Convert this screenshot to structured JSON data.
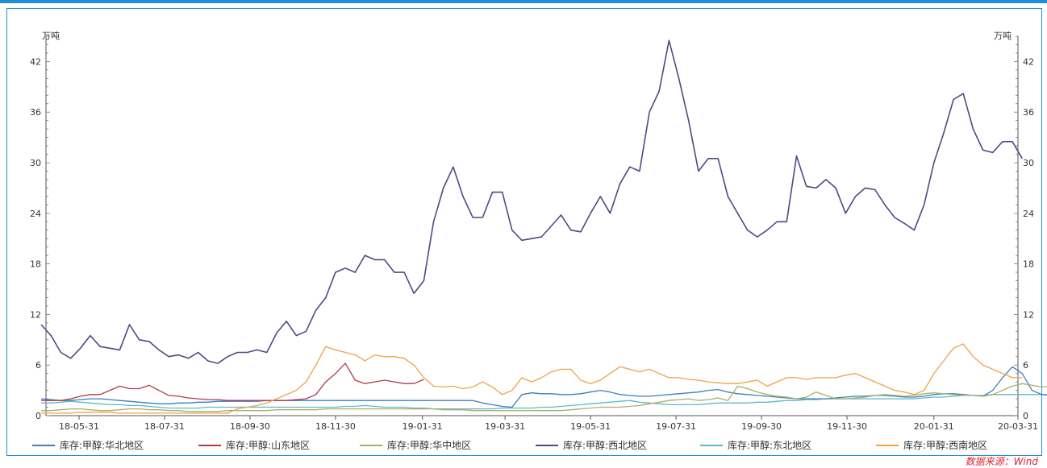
{
  "chart_data": {
    "type": "line",
    "unit_left": "万吨",
    "unit_right": "万吨",
    "ylim": [
      0,
      45
    ],
    "yticks": [
      0,
      6,
      12,
      18,
      24,
      30,
      36,
      42
    ],
    "xticks": [
      "18-05-31",
      "18-07-31",
      "18-09-30",
      "18-11-30",
      "19-01-31",
      "19-03-31",
      "19-05-31",
      "19-07-31",
      "19-09-30",
      "19-11-30",
      "20-01-31",
      "20-03-31"
    ],
    "grid": false,
    "legend_position": "bottom",
    "source": "数据来源：Wind",
    "x_start": "2018-05-04",
    "x_step_days": 7,
    "series": [
      {
        "name": "库存:甲醇:华北地区",
        "color": "#3c7fc0",
        "values": [
          2.0,
          1.9,
          1.8,
          1.8,
          1.9,
          2.0,
          2.0,
          1.9,
          1.8,
          1.7,
          1.6,
          1.5,
          1.4,
          1.4,
          1.5,
          1.5,
          1.6,
          1.6,
          1.7,
          1.7,
          1.7,
          1.7,
          1.7,
          1.8,
          1.8,
          1.8,
          1.8,
          1.8,
          1.8,
          1.8,
          1.8,
          1.8,
          1.8,
          1.8,
          1.8,
          1.8,
          1.8,
          1.8,
          1.8,
          1.8,
          1.8,
          1.8,
          1.8,
          1.8,
          1.8,
          1.5,
          1.3,
          1.1,
          1.0,
          2.5,
          2.7,
          2.6,
          2.6,
          2.5,
          2.5,
          2.6,
          2.8,
          3.0,
          2.8,
          2.5,
          2.4,
          2.3,
          2.3,
          2.4,
          2.5,
          2.6,
          2.7,
          2.8,
          3.0,
          3.1,
          2.8,
          2.6,
          2.5,
          2.4,
          2.3,
          2.2,
          2.1,
          2.0,
          2.0,
          2.0,
          2.0,
          2.1,
          2.2,
          2.3,
          2.3,
          2.4,
          2.4,
          2.3,
          2.2,
          2.2,
          2.3,
          2.5,
          2.6,
          2.6,
          2.5,
          2.4,
          2.3,
          3.0,
          4.5,
          5.8,
          5.0,
          3.0,
          2.5,
          2.4,
          2.3,
          2.2,
          2.3
        ]
      },
      {
        "name": "库存:甲醇:山东地区",
        "color": "#b23a4a",
        "values": [
          1.8,
          1.8,
          1.8,
          2.0,
          2.3,
          2.5,
          2.5,
          3.0,
          3.5,
          3.2,
          3.2,
          3.6,
          3.0,
          2.4,
          2.3,
          2.1,
          2.0,
          1.9,
          1.9,
          1.8,
          1.8,
          1.8,
          1.8,
          1.8,
          1.8,
          1.8,
          1.9,
          2.0,
          2.5,
          4.0,
          5.0,
          6.2,
          4.2,
          3.8,
          4.0,
          4.2,
          4.0,
          3.8,
          3.8,
          4.3
        ]
      },
      {
        "name": "库存:甲醇:华中地区",
        "color": "#a8b068",
        "values": [
          0.6,
          0.6,
          0.7,
          0.8,
          0.8,
          0.7,
          0.6,
          0.6,
          0.7,
          0.8,
          0.8,
          0.7,
          0.7,
          0.6,
          0.6,
          0.5,
          0.5,
          0.5,
          0.5,
          0.6,
          0.6,
          0.6,
          0.6,
          0.6,
          0.7,
          0.7,
          0.7,
          0.7,
          0.7,
          0.8,
          0.8,
          0.8,
          0.8,
          0.8,
          0.8,
          0.8,
          0.8,
          0.8,
          0.8,
          0.8,
          0.8,
          0.7,
          0.7,
          0.7,
          0.6,
          0.6,
          0.6,
          0.6,
          0.6,
          0.6,
          0.6,
          0.6,
          0.6,
          0.6,
          0.7,
          0.8,
          0.9,
          1.0,
          1.0,
          1.0,
          1.1,
          1.2,
          1.4,
          1.6,
          1.8,
          1.9,
          2.0,
          1.8,
          1.9,
          2.1,
          1.8,
          3.5,
          3.2,
          2.8,
          2.5,
          2.3,
          2.2,
          2.0,
          2.2,
          2.8,
          2.4,
          2.0,
          2.0,
          2.1,
          2.2,
          2.4,
          2.5,
          2.4,
          2.3,
          2.4,
          2.6,
          2.7,
          2.6,
          2.5,
          2.4,
          2.4,
          2.3,
          2.5,
          3.0,
          3.5,
          3.8,
          3.6,
          3.4,
          3.5,
          3.6,
          3.8,
          3.8
        ]
      },
      {
        "name": "库存:甲醇:西北地区",
        "color": "#4e4a82",
        "values": [
          10.8,
          9.5,
          7.5,
          6.8,
          8.0,
          9.5,
          8.2,
          8.0,
          7.8,
          10.8,
          9.0,
          8.8,
          7.8,
          7.0,
          7.2,
          6.8,
          7.5,
          6.5,
          6.2,
          7.0,
          7.5,
          7.5,
          7.8,
          7.5,
          9.8,
          11.2,
          9.5,
          10.0,
          12.5,
          14.0,
          17.0,
          17.5,
          17.0,
          19.0,
          18.5,
          18.5,
          17.0,
          17.0,
          14.5,
          16.0,
          23.0,
          27.0,
          29.5,
          26.0,
          23.5,
          23.5,
          26.5,
          26.5,
          22.0,
          20.8,
          21.0,
          21.2,
          22.5,
          23.8,
          22.0,
          21.8,
          24.0,
          26.0,
          24.0,
          27.5,
          29.5,
          29.0,
          36.0,
          38.5,
          44.5,
          40.0,
          35.0,
          29.0,
          30.5,
          30.5,
          26.0,
          24.0,
          22.0,
          21.2,
          22.0,
          23.0,
          23.0,
          30.8,
          27.2,
          27.0,
          28.0,
          27.0,
          24.0,
          26.0,
          27.0,
          26.8,
          25.0,
          23.5,
          22.8,
          22.0,
          25.0,
          30.0,
          33.5,
          37.5,
          38.2,
          34.0,
          31.5,
          31.2,
          32.5,
          32.5,
          30.5
        ]
      },
      {
        "name": "库存:甲醇:东北地区",
        "color": "#5fb8c9",
        "values": [
          1.5,
          1.5,
          1.6,
          1.7,
          1.6,
          1.5,
          1.4,
          1.3,
          1.3,
          1.2,
          1.2,
          1.1,
          1.0,
          0.9,
          0.9,
          0.9,
          0.9,
          1.0,
          1.0,
          1.0,
          1.0,
          1.0,
          1.0,
          1.0,
          1.0,
          1.0,
          1.0,
          1.0,
          1.0,
          1.0,
          1.0,
          1.1,
          1.1,
          1.2,
          1.1,
          1.0,
          1.0,
          1.0,
          0.9,
          0.9,
          0.8,
          0.8,
          0.8,
          0.8,
          0.8,
          0.8,
          0.8,
          0.9,
          0.9,
          0.9,
          0.9,
          1.0,
          1.0,
          1.1,
          1.2,
          1.3,
          1.4,
          1.5,
          1.6,
          1.7,
          1.8,
          1.6,
          1.5,
          1.4,
          1.3,
          1.3,
          1.3,
          1.3,
          1.4,
          1.5,
          1.5,
          1.5,
          1.5,
          1.6,
          1.6,
          1.7,
          1.8,
          1.8,
          1.9,
          1.9,
          2.0,
          2.0,
          2.0,
          2.0,
          2.0,
          2.0,
          2.0,
          2.0,
          2.0,
          2.0,
          2.1,
          2.2,
          2.2,
          2.3,
          2.4,
          2.4,
          2.4,
          2.5,
          2.5,
          2.5,
          2.5,
          2.5,
          2.5,
          2.5,
          2.5,
          2.5,
          2.5
        ]
      },
      {
        "name": "库存:甲醇:西南地区",
        "color": "#eea24a",
        "values": [
          0.3,
          0.3,
          0.3,
          0.3,
          0.4,
          0.4,
          0.4,
          0.4,
          0.3,
          0.3,
          0.3,
          0.3,
          0.3,
          0.3,
          0.3,
          0.3,
          0.3,
          0.3,
          0.3,
          0.3,
          0.8,
          1.0,
          1.2,
          1.5,
          2.0,
          2.5,
          3.0,
          4.0,
          6.0,
          8.2,
          7.8,
          7.5,
          7.2,
          6.5,
          7.2,
          7.0,
          7.0,
          6.8,
          6.0,
          4.5,
          3.5,
          3.4,
          3.5,
          3.2,
          3.4,
          4.0,
          3.4,
          2.5,
          3.0,
          4.5,
          4.0,
          4.5,
          5.2,
          5.5,
          5.5,
          4.2,
          3.8,
          4.2,
          5.0,
          5.8,
          5.5,
          5.2,
          5.5,
          5.0,
          4.5,
          4.5,
          4.3,
          4.2,
          4.0,
          3.9,
          3.8,
          3.8,
          4.0,
          4.2,
          3.5,
          4.0,
          4.5,
          4.5,
          4.3,
          4.5,
          4.5,
          4.5,
          4.8,
          5.0,
          4.5,
          4.0,
          3.5,
          3.0,
          2.8,
          2.5,
          3.0,
          5.0,
          6.5,
          8.0,
          8.5,
          7.0,
          6.0,
          5.5,
          5.0,
          4.5,
          4.5
        ]
      }
    ]
  }
}
